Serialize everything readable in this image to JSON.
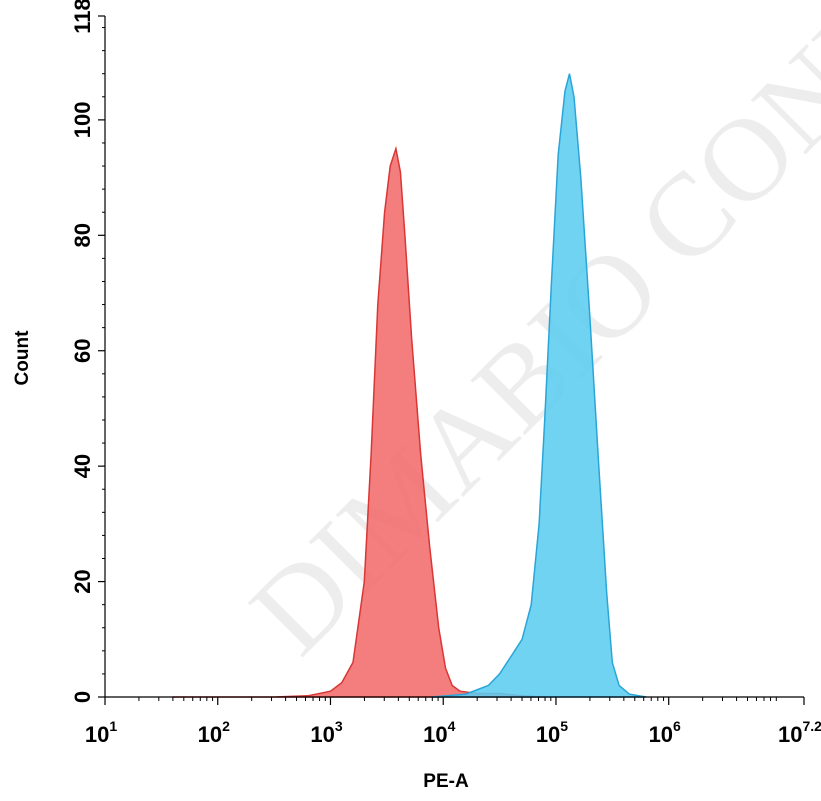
{
  "chart_data": {
    "type": "area",
    "xlabel": "PE-A",
    "ylabel": "Count",
    "x_scale": "log10",
    "xlim": [
      1,
      7.2
    ],
    "ylim": [
      0,
      118
    ],
    "x_ticks": [
      {
        "base": "10",
        "exp": "1",
        "value": 1
      },
      {
        "base": "10",
        "exp": "2",
        "value": 2
      },
      {
        "base": "10",
        "exp": "3",
        "value": 3
      },
      {
        "base": "10",
        "exp": "4",
        "value": 4
      },
      {
        "base": "10",
        "exp": "5",
        "value": 5
      },
      {
        "base": "10",
        "exp": "6",
        "value": 6
      },
      {
        "base": "10",
        "exp": "7.2",
        "value": 7.2
      }
    ],
    "y_ticks": [
      "0",
      "20",
      "40",
      "60",
      "80",
      "100",
      "118"
    ],
    "y_tick_values": [
      0,
      20,
      40,
      60,
      80,
      100,
      118
    ],
    "grid": false,
    "series": [
      {
        "color": "#f26b6b",
        "stroke": "#d93636",
        "points": [
          [
            1.6,
            0
          ],
          [
            2.5,
            0
          ],
          [
            2.8,
            0.2
          ],
          [
            3.0,
            1.0
          ],
          [
            3.1,
            2.5
          ],
          [
            3.2,
            6
          ],
          [
            3.3,
            20
          ],
          [
            3.36,
            42
          ],
          [
            3.42,
            68
          ],
          [
            3.48,
            84
          ],
          [
            3.53,
            92
          ],
          [
            3.58,
            95
          ],
          [
            3.62,
            91
          ],
          [
            3.66,
            80
          ],
          [
            3.72,
            62
          ],
          [
            3.8,
            42
          ],
          [
            3.88,
            26
          ],
          [
            3.96,
            12
          ],
          [
            4.02,
            5
          ],
          [
            4.08,
            2
          ],
          [
            4.15,
            1
          ],
          [
            4.3,
            0.6
          ],
          [
            4.5,
            0.6
          ],
          [
            4.7,
            0.2
          ],
          [
            4.9,
            0
          ]
        ]
      },
      {
        "color": "#5ccdf0",
        "stroke": "#2aa5d8",
        "points": [
          [
            3.9,
            0
          ],
          [
            4.2,
            0.5
          ],
          [
            4.4,
            2
          ],
          [
            4.5,
            4
          ],
          [
            4.6,
            7
          ],
          [
            4.7,
            10
          ],
          [
            4.78,
            16
          ],
          [
            4.85,
            30
          ],
          [
            4.9,
            48
          ],
          [
            4.96,
            72
          ],
          [
            5.02,
            94
          ],
          [
            5.08,
            105
          ],
          [
            5.12,
            108
          ],
          [
            5.16,
            104
          ],
          [
            5.22,
            90
          ],
          [
            5.3,
            66
          ],
          [
            5.38,
            40
          ],
          [
            5.45,
            18
          ],
          [
            5.5,
            6
          ],
          [
            5.56,
            2
          ],
          [
            5.65,
            0.5
          ],
          [
            5.8,
            0
          ]
        ]
      }
    ]
  },
  "watermark": "DIMABIO CONFIDENTIAL",
  "colors": {
    "axis": "#000000"
  }
}
